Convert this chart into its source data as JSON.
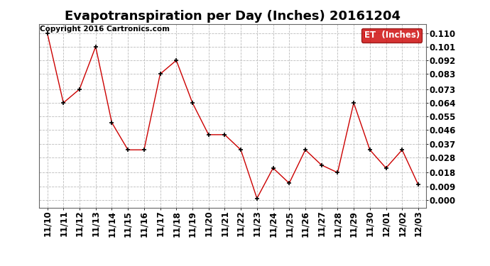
{
  "title": "Evapotranspiration per Day (Inches) 20161204",
  "copyright": "Copyright 2016 Cartronics.com",
  "legend_label": "ET  (Inches)",
  "legend_bg": "#cc0000",
  "legend_text_color": "#ffffff",
  "x_labels": [
    "11/10",
    "11/11",
    "11/12",
    "11/13",
    "11/14",
    "11/15",
    "11/16",
    "11/17",
    "11/18",
    "11/19",
    "11/20",
    "11/21",
    "11/22",
    "11/23",
    "11/24",
    "11/25",
    "11/26",
    "11/27",
    "11/28",
    "11/29",
    "11/30",
    "12/01",
    "12/02",
    "12/03"
  ],
  "y_values": [
    0.11,
    0.064,
    0.073,
    0.101,
    0.051,
    0.033,
    0.033,
    0.083,
    0.092,
    0.064,
    0.043,
    0.043,
    0.033,
    0.001,
    0.021,
    0.011,
    0.033,
    0.023,
    0.018,
    0.064,
    0.033,
    0.021,
    0.033,
    0.01
  ],
  "line_color": "#cc0000",
  "marker_color": "#000000",
  "marker_size": 5,
  "bg_color": "#ffffff",
  "grid_color": "#bbbbbb",
  "ylim_min": -0.005,
  "ylim_max": 0.116,
  "yticks": [
    0.0,
    0.009,
    0.018,
    0.028,
    0.037,
    0.046,
    0.055,
    0.064,
    0.073,
    0.083,
    0.092,
    0.101,
    0.11
  ],
  "title_fontsize": 13,
  "tick_fontsize": 8.5,
  "copyright_fontsize": 7.5
}
